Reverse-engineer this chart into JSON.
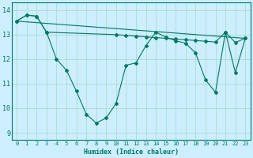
{
  "xlabel": "Humidex (Indice chaleur)",
  "background_color": "#cceeff",
  "grid_color": "#aaddcc",
  "line_color": "#007766",
  "xlim": [
    -0.5,
    23.5
  ],
  "ylim": [
    8.7,
    14.3
  ],
  "yticks": [
    9,
    10,
    11,
    12,
    13,
    14
  ],
  "xticks": [
    0,
    1,
    2,
    3,
    4,
    5,
    6,
    7,
    8,
    9,
    10,
    11,
    12,
    13,
    14,
    15,
    16,
    17,
    18,
    19,
    20,
    21,
    22,
    23
  ],
  "line1_x": [
    0,
    1,
    2,
    3,
    4,
    5,
    6,
    7,
    8,
    9,
    10,
    11,
    12,
    13,
    14,
    15,
    16,
    17,
    18,
    19,
    20,
    21,
    22,
    23
  ],
  "line1_y": [
    13.55,
    13.8,
    13.75,
    13.1,
    12.0,
    11.55,
    10.7,
    9.75,
    9.4,
    9.6,
    10.2,
    11.75,
    11.85,
    12.55,
    13.1,
    12.9,
    12.75,
    12.65,
    12.25,
    11.15,
    10.65,
    13.1,
    11.45,
    12.85
  ],
  "line2_x": [
    0,
    1,
    2,
    3,
    10,
    11,
    12,
    13,
    14,
    15,
    16,
    17,
    18,
    19,
    20,
    21,
    22,
    23
  ],
  "line2_y": [
    13.55,
    13.8,
    13.75,
    13.1,
    13.0,
    12.97,
    12.94,
    12.91,
    12.88,
    12.85,
    12.82,
    12.79,
    12.76,
    12.73,
    12.7,
    13.1,
    12.68,
    12.85
  ],
  "line3_x": [
    0,
    23
  ],
  "line3_y": [
    13.55,
    12.85
  ]
}
